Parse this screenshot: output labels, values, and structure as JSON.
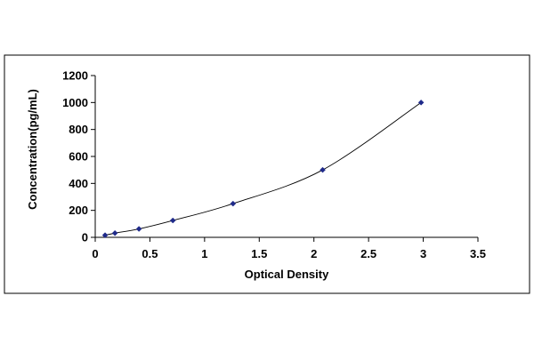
{
  "chart_data": {
    "type": "scatter",
    "title": "",
    "xlabel": "Optical Density",
    "ylabel": "Concentration(pg/mL)",
    "xlim": [
      0,
      3.5
    ],
    "ylim": [
      0,
      1200
    ],
    "x_ticks": [
      0,
      0.5,
      1,
      1.5,
      2,
      2.5,
      3,
      3.5
    ],
    "y_ticks": [
      0,
      200,
      400,
      600,
      800,
      1000,
      1200
    ],
    "x_tick_labels": [
      "0",
      "0.5",
      "1",
      "1.5",
      "2",
      "2.5",
      "3",
      "3.5"
    ],
    "y_tick_labels": [
      "0",
      "200",
      "400",
      "600",
      "800",
      "1000",
      "1200"
    ],
    "grid": false,
    "legend": "none",
    "trendline": "smooth",
    "series": [
      {
        "color": "#1f2a8a",
        "points": [
          {
            "x": 0.09,
            "y": 15.6
          },
          {
            "x": 0.18,
            "y": 31.2
          },
          {
            "x": 0.4,
            "y": 62.5
          },
          {
            "x": 0.71,
            "y": 125
          },
          {
            "x": 1.26,
            "y": 250
          },
          {
            "x": 2.08,
            "y": 500
          },
          {
            "x": 2.98,
            "y": 1000
          }
        ]
      }
    ]
  }
}
